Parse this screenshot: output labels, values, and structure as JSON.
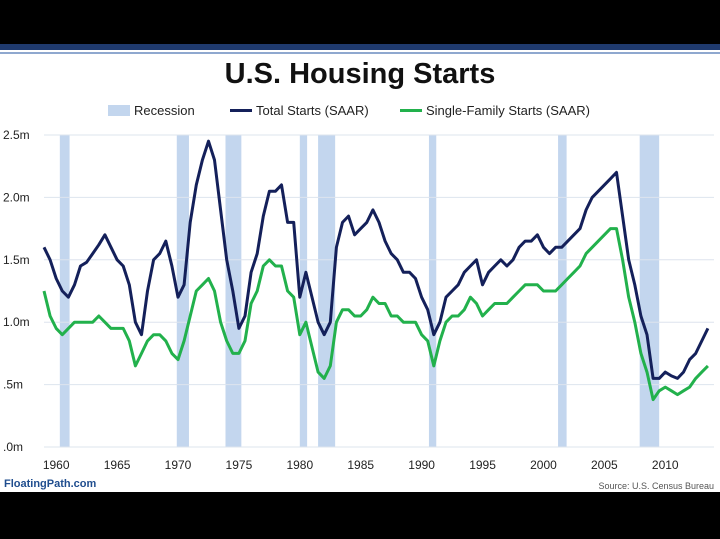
{
  "header": {
    "title": "U.S. Housing Starts"
  },
  "legend": {
    "recession": "Recession",
    "total": "Total Starts (SAAR)",
    "single": "Single-Family Starts (SAAR)"
  },
  "footer": {
    "left": "FloatingPath.com",
    "right": "Source: U.S. Census Bureau"
  },
  "colors": {
    "recession": "#c3d6ee",
    "total": "#14205a",
    "single": "#22b14c",
    "grid": "#dde4ee"
  },
  "chart_data": {
    "type": "line",
    "title": "U.S. Housing Starts",
    "xlim": [
      1959,
      2014
    ],
    "ylim": [
      0,
      2.5
    ],
    "x_ticks": [
      1960,
      1965,
      1970,
      1975,
      1980,
      1985,
      1990,
      1995,
      2000,
      2005,
      2010
    ],
    "x_tick_labels": [
      "1960",
      "1965",
      "1970",
      "1975",
      "1980",
      "1985",
      "1990",
      "1995",
      "2000",
      "2005",
      "2010"
    ],
    "y_ticks": [
      0,
      0.5,
      1.0,
      1.5,
      2.0,
      2.5
    ],
    "y_tick_labels": [
      ".0m",
      ".5m",
      "1.0m",
      "1.5m",
      "2.0m",
      "2.5m"
    ],
    "grid": true,
    "legend_position": "top",
    "recessions": [
      [
        1960.3,
        1961.1
      ],
      [
        1969.9,
        1970.9
      ],
      [
        1973.9,
        1975.2
      ],
      [
        1980.0,
        1980.6
      ],
      [
        1981.5,
        1982.9
      ],
      [
        1990.6,
        1991.2
      ],
      [
        2001.2,
        2001.9
      ],
      [
        2007.9,
        2009.5
      ]
    ],
    "series": [
      {
        "name": "Total Starts (SAAR)",
        "x": [
          1959.0,
          1959.5,
          1960.0,
          1960.5,
          1961.0,
          1961.5,
          1962.0,
          1962.5,
          1963.0,
          1963.5,
          1964.0,
          1964.5,
          1965.0,
          1965.5,
          1966.0,
          1966.5,
          1967.0,
          1967.5,
          1968.0,
          1968.5,
          1969.0,
          1969.5,
          1970.0,
          1970.5,
          1971.0,
          1971.5,
          1972.0,
          1972.5,
          1973.0,
          1973.5,
          1974.0,
          1974.5,
          1975.0,
          1975.5,
          1976.0,
          1976.5,
          1977.0,
          1977.5,
          1978.0,
          1978.5,
          1979.0,
          1979.5,
          1980.0,
          1980.5,
          1981.0,
          1981.5,
          1982.0,
          1982.5,
          1983.0,
          1983.5,
          1984.0,
          1984.5,
          1985.0,
          1985.5,
          1986.0,
          1986.5,
          1987.0,
          1987.5,
          1988.0,
          1988.5,
          1989.0,
          1989.5,
          1990.0,
          1990.5,
          1991.0,
          1991.5,
          1992.0,
          1992.5,
          1993.0,
          1993.5,
          1994.0,
          1994.5,
          1995.0,
          1995.5,
          1996.0,
          1996.5,
          1997.0,
          1997.5,
          1998.0,
          1998.5,
          1999.0,
          1999.5,
          2000.0,
          2000.5,
          2001.0,
          2001.5,
          2002.0,
          2002.5,
          2003.0,
          2003.5,
          2004.0,
          2004.5,
          2005.0,
          2005.5,
          2006.0,
          2006.5,
          2007.0,
          2007.5,
          2008.0,
          2008.5,
          2009.0,
          2009.5,
          2010.0,
          2010.5,
          2011.0,
          2011.5,
          2012.0,
          2012.5,
          2013.0,
          2013.5
        ],
        "values": [
          1.6,
          1.5,
          1.35,
          1.25,
          1.2,
          1.3,
          1.45,
          1.48,
          1.55,
          1.62,
          1.7,
          1.6,
          1.5,
          1.45,
          1.3,
          1.0,
          0.9,
          1.25,
          1.5,
          1.55,
          1.65,
          1.45,
          1.2,
          1.3,
          1.8,
          2.1,
          2.3,
          2.45,
          2.3,
          1.9,
          1.5,
          1.25,
          0.95,
          1.05,
          1.4,
          1.55,
          1.85,
          2.05,
          2.05,
          2.1,
          1.8,
          1.8,
          1.2,
          1.4,
          1.2,
          1.0,
          0.9,
          1.0,
          1.6,
          1.8,
          1.85,
          1.7,
          1.75,
          1.8,
          1.9,
          1.8,
          1.65,
          1.55,
          1.5,
          1.4,
          1.4,
          1.35,
          1.2,
          1.1,
          0.9,
          1.0,
          1.2,
          1.25,
          1.3,
          1.4,
          1.45,
          1.5,
          1.3,
          1.4,
          1.45,
          1.5,
          1.45,
          1.5,
          1.6,
          1.65,
          1.65,
          1.7,
          1.6,
          1.55,
          1.6,
          1.6,
          1.65,
          1.7,
          1.75,
          1.9,
          2.0,
          2.05,
          2.1,
          2.15,
          2.2,
          1.85,
          1.5,
          1.3,
          1.05,
          0.9,
          0.55,
          0.55,
          0.6,
          0.57,
          0.55,
          0.6,
          0.7,
          0.75,
          0.85,
          0.95
        ]
      },
      {
        "name": "Single-Family Starts (SAAR)",
        "x": [
          1959.0,
          1959.5,
          1960.0,
          1960.5,
          1961.0,
          1961.5,
          1962.0,
          1962.5,
          1963.0,
          1963.5,
          1964.0,
          1964.5,
          1965.0,
          1965.5,
          1966.0,
          1966.5,
          1967.0,
          1967.5,
          1968.0,
          1968.5,
          1969.0,
          1969.5,
          1970.0,
          1970.5,
          1971.0,
          1971.5,
          1972.0,
          1972.5,
          1973.0,
          1973.5,
          1974.0,
          1974.5,
          1975.0,
          1975.5,
          1976.0,
          1976.5,
          1977.0,
          1977.5,
          1978.0,
          1978.5,
          1979.0,
          1979.5,
          1980.0,
          1980.5,
          1981.0,
          1981.5,
          1982.0,
          1982.5,
          1983.0,
          1983.5,
          1984.0,
          1984.5,
          1985.0,
          1985.5,
          1986.0,
          1986.5,
          1987.0,
          1987.5,
          1988.0,
          1988.5,
          1989.0,
          1989.5,
          1990.0,
          1990.5,
          1991.0,
          1991.5,
          1992.0,
          1992.5,
          1993.0,
          1993.5,
          1994.0,
          1994.5,
          1995.0,
          1995.5,
          1996.0,
          1996.5,
          1997.0,
          1997.5,
          1998.0,
          1998.5,
          1999.0,
          1999.5,
          2000.0,
          2000.5,
          2001.0,
          2001.5,
          2002.0,
          2002.5,
          2003.0,
          2003.5,
          2004.0,
          2004.5,
          2005.0,
          2005.5,
          2006.0,
          2006.5,
          2007.0,
          2007.5,
          2008.0,
          2008.5,
          2009.0,
          2009.5,
          2010.0,
          2010.5,
          2011.0,
          2011.5,
          2012.0,
          2012.5,
          2013.0,
          2013.5
        ],
        "values": [
          1.25,
          1.05,
          0.95,
          0.9,
          0.95,
          1.0,
          1.0,
          1.0,
          1.0,
          1.05,
          1.0,
          0.95,
          0.95,
          0.95,
          0.85,
          0.65,
          0.75,
          0.85,
          0.9,
          0.9,
          0.85,
          0.75,
          0.7,
          0.85,
          1.05,
          1.25,
          1.3,
          1.35,
          1.25,
          1.0,
          0.85,
          0.75,
          0.75,
          0.85,
          1.15,
          1.25,
          1.45,
          1.5,
          1.45,
          1.45,
          1.25,
          1.2,
          0.9,
          1.0,
          0.8,
          0.6,
          0.55,
          0.65,
          1.0,
          1.1,
          1.1,
          1.05,
          1.05,
          1.1,
          1.2,
          1.15,
          1.15,
          1.05,
          1.05,
          1.0,
          1.0,
          1.0,
          0.9,
          0.85,
          0.65,
          0.85,
          1.0,
          1.05,
          1.05,
          1.1,
          1.2,
          1.15,
          1.05,
          1.1,
          1.15,
          1.15,
          1.15,
          1.2,
          1.25,
          1.3,
          1.3,
          1.3,
          1.25,
          1.25,
          1.25,
          1.3,
          1.35,
          1.4,
          1.45,
          1.55,
          1.6,
          1.65,
          1.7,
          1.75,
          1.75,
          1.5,
          1.2,
          1.0,
          0.75,
          0.6,
          0.38,
          0.45,
          0.48,
          0.45,
          0.42,
          0.45,
          0.48,
          0.55,
          0.6,
          0.65
        ]
      }
    ]
  }
}
